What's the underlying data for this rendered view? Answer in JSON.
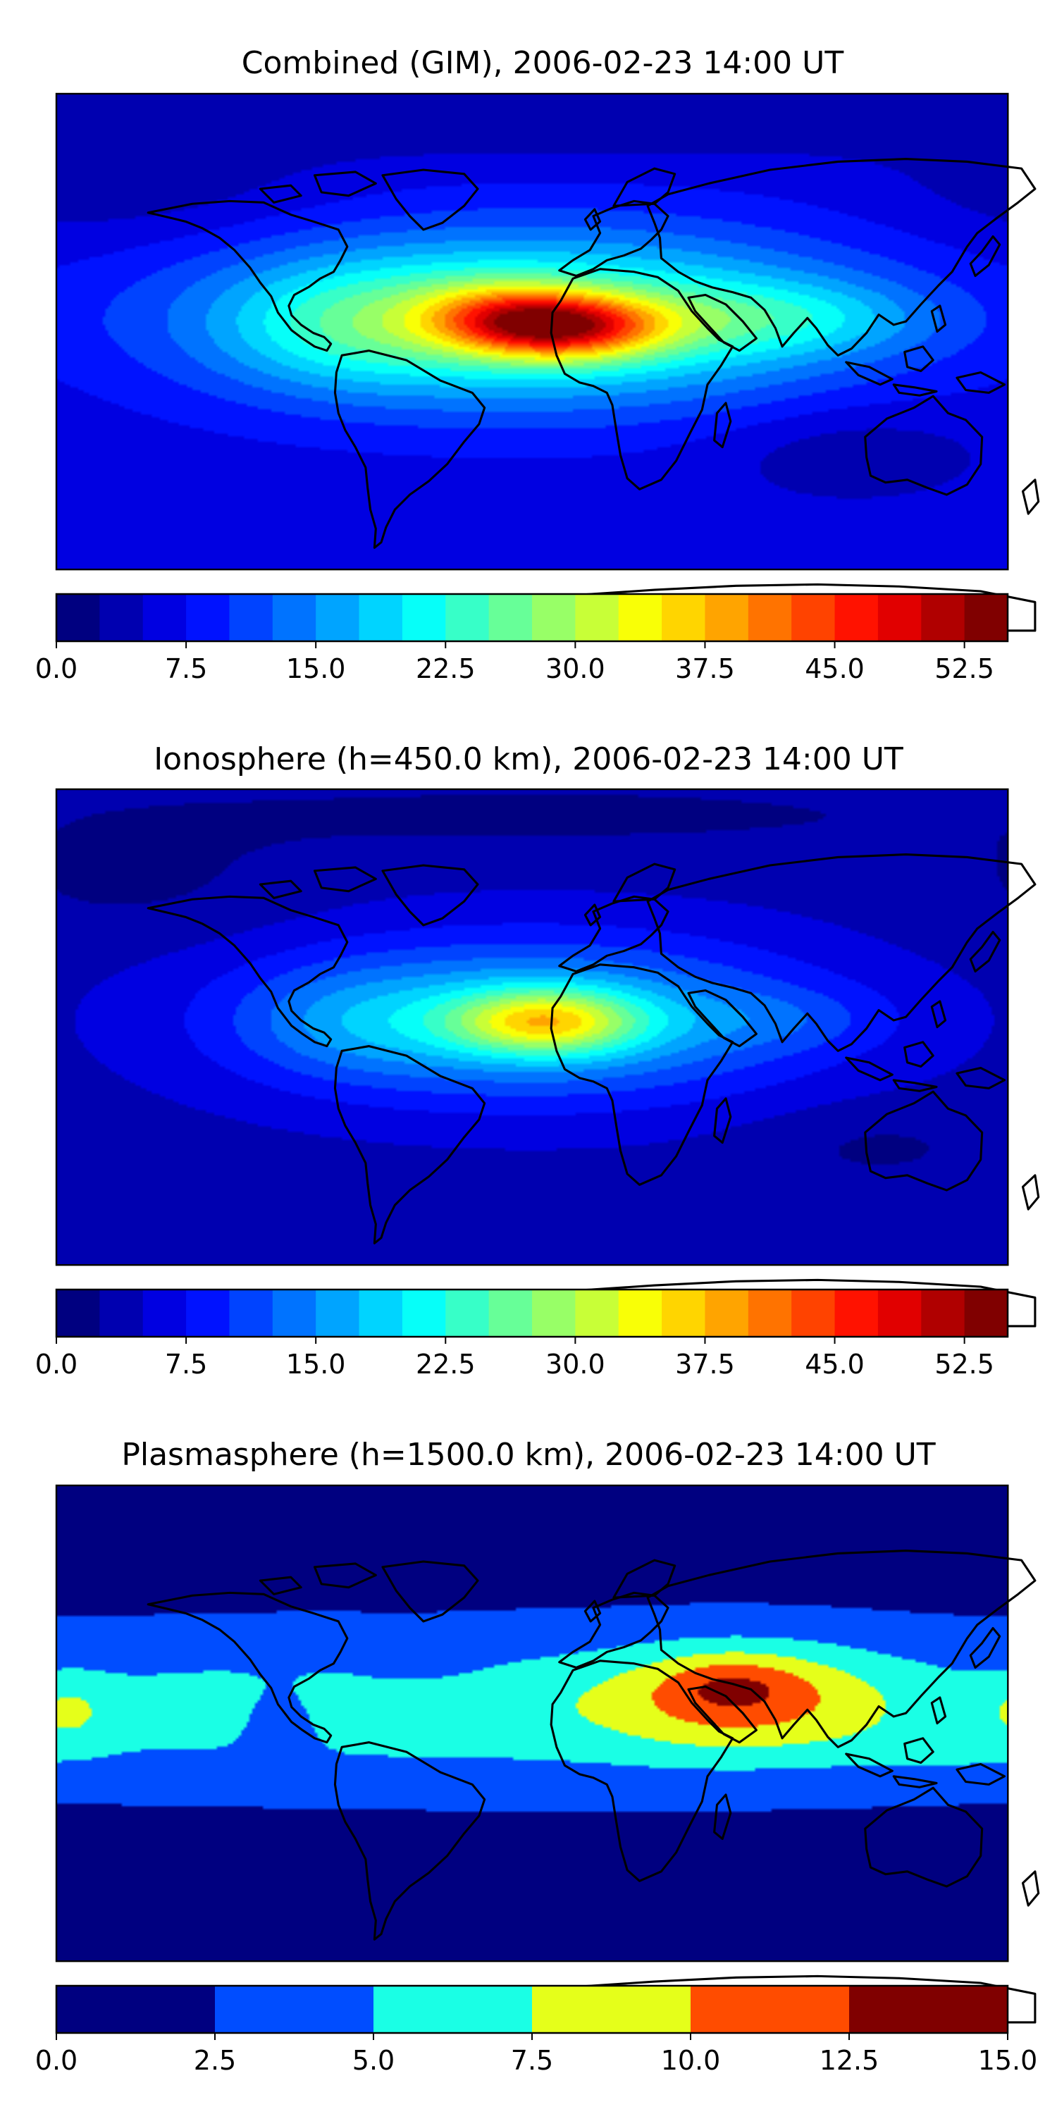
{
  "chart_data": [
    {
      "type": "heatmap",
      "title": "Combined (GIM), 2006-02-23 14:00 UT",
      "colormap": "jet",
      "levels": [
        0,
        2.5,
        5,
        7.5,
        10,
        12.5,
        15,
        17.5,
        20,
        22.5,
        25,
        27.5,
        30,
        32.5,
        35,
        37.5,
        40,
        42.5,
        45,
        47.5,
        50,
        52.5,
        55
      ],
      "vmin": 0,
      "vmax": 55,
      "colorbar_ticks": [
        "0.0",
        "7.5",
        "15.0",
        "22.5",
        "30.0",
        "37.5",
        "45.0",
        "52.5"
      ],
      "field": {
        "background": 6,
        "blobs": [
          {
            "lon": 0,
            "lat": 5,
            "rx": 125,
            "ry": 33,
            "amp": 20
          },
          {
            "lon": 10,
            "lat": 2,
            "rx": 38,
            "ry": 12,
            "amp": 28
          },
          {
            "lon": -15,
            "lat": 8,
            "rx": 30,
            "ry": 12,
            "amp": 8
          },
          {
            "lon": 95,
            "lat": 5,
            "rx": 55,
            "ry": 14,
            "amp": 7
          },
          {
            "lon": -70,
            "lat": 2,
            "rx": 45,
            "ry": 22,
            "amp": 6
          },
          {
            "lon": 120,
            "lat": -45,
            "rx": 50,
            "ry": 18,
            "amp": -3
          },
          {
            "lon": -150,
            "lat": 55,
            "rx": 70,
            "ry": 22,
            "amp": -3
          },
          {
            "lon": 0,
            "lat": 80,
            "rx": 200,
            "ry": 15,
            "amp": -3
          }
        ]
      }
    },
    {
      "type": "heatmap",
      "title": "Ionosphere  (h=450.0 km), 2006-02-23 14:00 UT",
      "colormap": "jet",
      "levels": [
        0,
        2.5,
        5,
        7.5,
        10,
        12.5,
        15,
        17.5,
        20,
        22.5,
        25,
        27.5,
        30,
        32.5,
        35,
        37.5,
        40,
        42.5,
        45,
        47.5,
        50,
        52.5,
        55
      ],
      "vmin": 0,
      "vmax": 55,
      "colorbar_ticks": [
        "0.0",
        "7.5",
        "15.0",
        "22.5",
        "30.0",
        "37.5",
        "45.0",
        "52.5"
      ],
      "field": {
        "background": 4,
        "blobs": [
          {
            "lon": 0,
            "lat": 3,
            "rx": 105,
            "ry": 30,
            "amp": 15
          },
          {
            "lon": 5,
            "lat": 2,
            "rx": 35,
            "ry": 12,
            "amp": 19
          },
          {
            "lon": -70,
            "lat": 2,
            "rx": 40,
            "ry": 20,
            "amp": 4
          },
          {
            "lon": 95,
            "lat": 3,
            "rx": 40,
            "ry": 12,
            "amp": 3
          },
          {
            "lon": 130,
            "lat": -45,
            "rx": 45,
            "ry": 15,
            "amp": -2
          },
          {
            "lon": -150,
            "lat": 55,
            "rx": 60,
            "ry": 22,
            "amp": -2
          },
          {
            "lon": 0,
            "lat": 80,
            "rx": 200,
            "ry": 15,
            "amp": -2
          }
        ]
      }
    },
    {
      "type": "heatmap",
      "title": "Plasmasphere (h=1500.0 km), 2006-02-23 14:00 UT",
      "colormap": "jet",
      "levels": [
        0,
        2.5,
        5,
        7.5,
        10,
        12.5,
        15
      ],
      "vmin": 0,
      "vmax": 15,
      "colorbar_ticks": [
        "0.0",
        "2.5",
        "5.0",
        "7.5",
        "10.0",
        "12.5",
        "15.0"
      ],
      "field": {
        "background": 1.5,
        "blobs": [
          {
            "lon": 0,
            "lat": 5,
            "rx": 360,
            "ry": 30,
            "amp": 5
          },
          {
            "lon": 80,
            "lat": 10,
            "rx": 50,
            "ry": 20,
            "amp": 5.2
          },
          {
            "lon": 75,
            "lat": 15,
            "rx": 25,
            "ry": 10,
            "amp": 2.5
          },
          {
            "lon": -95,
            "lat": 0,
            "rx": 15,
            "ry": 15,
            "amp": -2
          },
          {
            "lon": -45,
            "lat": 25,
            "rx": 25,
            "ry": 10,
            "amp": -1.5
          },
          {
            "lon": -175,
            "lat": 5,
            "rx": 15,
            "ry": 12,
            "amp": 2.5
          },
          {
            "lon": 160,
            "lat": -10,
            "rx": 40,
            "ry": 10,
            "amp": 1.2
          }
        ]
      }
    }
  ]
}
